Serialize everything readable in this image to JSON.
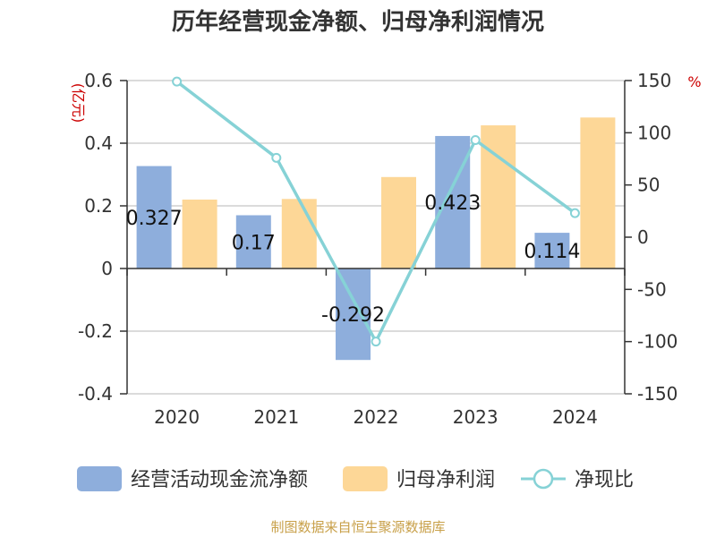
{
  "chart_data": {
    "type": "bar",
    "title": "历年经营现金净额、归母净利润情况",
    "categories": [
      "2020",
      "2021",
      "2022",
      "2023",
      "2024"
    ],
    "series": [
      {
        "name": "经营活动现金流净额",
        "kind": "bar",
        "axis": "left",
        "color": "#8eaedc",
        "values": [
          0.327,
          0.17,
          -0.292,
          0.423,
          0.114
        ],
        "labels": [
          "0.327",
          "0.17",
          "-0.292",
          "0.423",
          "0.114"
        ]
      },
      {
        "name": "归母净利润",
        "kind": "bar",
        "axis": "left",
        "color": "#fdd797",
        "values": [
          0.22,
          0.222,
          0.292,
          0.457,
          0.482
        ]
      },
      {
        "name": "净现比",
        "kind": "line",
        "axis": "right",
        "color": "#86d2d6",
        "values": [
          149,
          76,
          -100,
          93,
          23
        ]
      }
    ],
    "left_axis": {
      "unit": "(亿元)",
      "ylim": [
        -0.4,
        0.6
      ],
      "ticks": [
        -0.4,
        -0.2,
        0,
        0.2,
        0.4,
        0.6
      ],
      "tick_labels": [
        "-0.4",
        "-0.2",
        "0",
        "0.2",
        "0.4",
        "0.6"
      ]
    },
    "right_axis": {
      "unit": "%",
      "ylim": [
        -150,
        150
      ],
      "ticks": [
        -150,
        -100,
        -50,
        0,
        50,
        100,
        150
      ],
      "tick_labels": [
        "-150",
        "-100",
        "-50",
        "0",
        "50",
        "100",
        "150"
      ]
    },
    "legend_position": "bottom",
    "source": "制图数据来自恒生聚源数据库"
  }
}
